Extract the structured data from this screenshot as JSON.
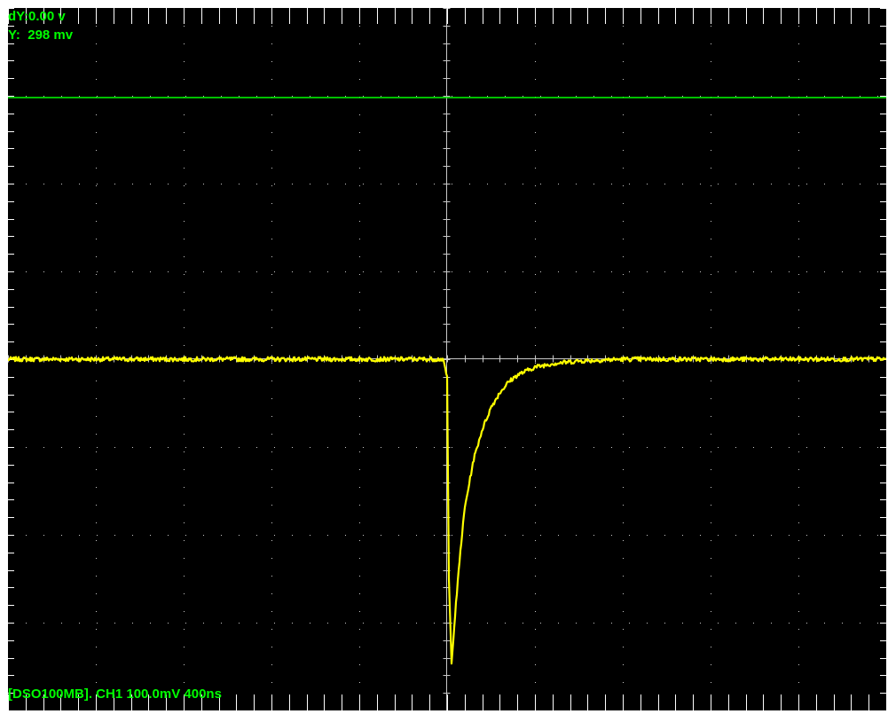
{
  "readouts": {
    "dy": "dY:0.00 v",
    "y": "Y:  298 mv"
  },
  "status": {
    "line": "[DSO100MB]. CH1 100.0mV 400ns"
  },
  "colors": {
    "background": "#000000",
    "frame": "#ffffff",
    "grid": "#c8c8c8",
    "channel1_trace": "#ffff00",
    "reference_marker": "#00ff00",
    "text": "#00ff00"
  },
  "scope": {
    "channel": "CH1",
    "volts_per_div": "100.0mV",
    "time_per_div": "400ns",
    "horizontal_divisions": 10,
    "vertical_divisions": 8
  },
  "chart_data": {
    "type": "line",
    "title": "",
    "xlabel": "",
    "ylabel": "",
    "units": {
      "x": "divisions from center",
      "y": "divisions from center"
    },
    "xlim": [
      -5,
      5
    ],
    "ylim": [
      -4,
      4
    ],
    "grid": true,
    "series": [
      {
        "name": "CH1",
        "color": "#ffff00",
        "x": [
          -5.0,
          -4.0,
          -3.0,
          -2.0,
          -1.0,
          -0.05,
          0.0,
          0.02,
          0.05,
          0.1,
          0.15,
          0.2,
          0.3,
          0.4,
          0.5,
          0.6,
          0.7,
          0.8,
          1.0,
          1.2,
          1.5,
          2.0,
          3.0,
          4.0,
          5.0
        ],
        "values": [
          0.0,
          0.0,
          0.0,
          0.0,
          0.0,
          0.0,
          -0.2,
          -2.5,
          -3.45,
          -2.8,
          -2.2,
          -1.7,
          -1.15,
          -0.8,
          -0.55,
          -0.38,
          -0.26,
          -0.18,
          -0.09,
          -0.05,
          -0.02,
          0.0,
          0.0,
          0.0,
          0.0
        ]
      },
      {
        "name": "",
        "color": "#00ff00",
        "x": [
          -5.0,
          5.0
        ],
        "values": [
          2.98,
          2.98
        ]
      }
    ]
  }
}
